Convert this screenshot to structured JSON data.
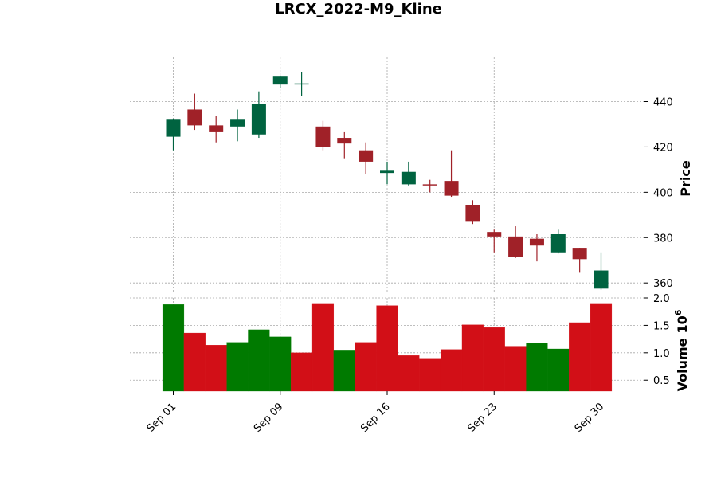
{
  "chart_data": {
    "type": "candlestick",
    "title": "LRCX_2022-M9_Kline",
    "dates": [
      "2022-09-01",
      "2022-09-02",
      "2022-09-06",
      "2022-09-07",
      "2022-09-08",
      "2022-09-09",
      "2022-09-12",
      "2022-09-13",
      "2022-09-14",
      "2022-09-15",
      "2022-09-16",
      "2022-09-19",
      "2022-09-20",
      "2022-09-21",
      "2022-09-22",
      "2022-09-23",
      "2022-09-26",
      "2022-09-27",
      "2022-09-28",
      "2022-09-29",
      "2022-09-30"
    ],
    "ohlc": [
      {
        "open": 424.5,
        "high": 432.5,
        "low": 418.5,
        "close": 432.0
      },
      {
        "open": 436.5,
        "high": 443.5,
        "low": 427.5,
        "close": 429.5
      },
      {
        "open": 429.5,
        "high": 433.5,
        "low": 422.0,
        "close": 426.5
      },
      {
        "open": 429.0,
        "high": 436.5,
        "low": 422.5,
        "close": 432.0
      },
      {
        "open": 425.5,
        "high": 444.5,
        "low": 424.0,
        "close": 439.0
      },
      {
        "open": 447.5,
        "high": 451.5,
        "low": 446.0,
        "close": 451.0
      },
      {
        "open": 447.5,
        "high": 453.0,
        "low": 442.5,
        "close": 448.0
      },
      {
        "open": 429.0,
        "high": 431.5,
        "low": 418.5,
        "close": 420.0
      },
      {
        "open": 424.0,
        "high": 426.5,
        "low": 415.0,
        "close": 421.5
      },
      {
        "open": 418.5,
        "high": 422.0,
        "low": 408.0,
        "close": 413.5
      },
      {
        "open": 408.5,
        "high": 413.5,
        "low": 403.5,
        "close": 409.5
      },
      {
        "open": 403.5,
        "high": 413.5,
        "low": 403.0,
        "close": 409.0
      },
      {
        "open": 403.5,
        "high": 405.5,
        "low": 400.0,
        "close": 403.0
      },
      {
        "open": 405.0,
        "high": 418.5,
        "low": 398.0,
        "close": 398.5
      },
      {
        "open": 394.5,
        "high": 396.5,
        "low": 386.0,
        "close": 387.0
      },
      {
        "open": 382.5,
        "high": 383.5,
        "low": 373.5,
        "close": 380.5
      },
      {
        "open": 380.5,
        "high": 385.0,
        "low": 371.0,
        "close": 371.5
      },
      {
        "open": 379.5,
        "high": 381.5,
        "low": 369.5,
        "close": 376.5
      },
      {
        "open": 373.5,
        "high": 383.5,
        "low": 373.0,
        "close": 381.5
      },
      {
        "open": 375.5,
        "high": 375.5,
        "low": 364.5,
        "close": 370.5
      },
      {
        "open": 357.5,
        "high": 373.5,
        "low": 357.0,
        "close": 365.5
      }
    ],
    "volume": [
      1.88,
      1.36,
      1.14,
      1.19,
      1.42,
      1.29,
      1.0,
      1.9,
      1.05,
      1.19,
      1.86,
      0.95,
      0.9,
      1.06,
      1.51,
      1.46,
      1.12,
      1.18,
      1.07,
      1.55,
      1.9
    ],
    "volume_up": [
      true,
      false,
      false,
      true,
      true,
      true,
      false,
      false,
      true,
      false,
      false,
      false,
      false,
      false,
      false,
      false,
      false,
      true,
      true,
      false,
      false
    ],
    "x_tick_labels": [
      {
        "index": 0,
        "label": "Sep 01"
      },
      {
        "index": 5,
        "label": "Sep 09"
      },
      {
        "index": 10,
        "label": "Sep 16"
      },
      {
        "index": 15,
        "label": "Sep 23"
      },
      {
        "index": 20,
        "label": "Sep 30"
      }
    ],
    "price_ticks": [
      360,
      380,
      400,
      420,
      440
    ],
    "price_ylim": [
      355.5,
      459.5
    ],
    "volume_ticks": [
      0.5,
      1.0,
      1.5,
      2.0
    ],
    "volume_ylim": [
      0.3,
      2.0
    ],
    "ylabel_price": "Price",
    "ylabel_volume": "Volume",
    "volume_exponent_label": "10",
    "volume_exponent_power": "6",
    "grid": true,
    "colors": {
      "up_candle": "#006340",
      "down_candle": "#a02128",
      "up_volume": "#007a00",
      "down_volume": "#d20f17"
    }
  }
}
